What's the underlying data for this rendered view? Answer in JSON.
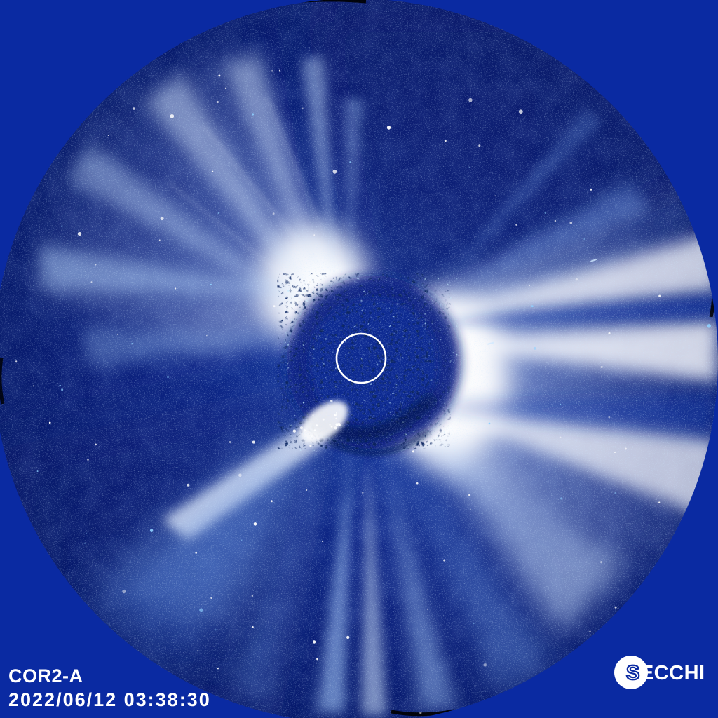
{
  "overlay": {
    "instrument_label": "COR2-A",
    "timestamp": "2022/06/12 03:38:30",
    "logo": {
      "first": "S",
      "rest": "ECCHI"
    }
  },
  "colors": {
    "corner_blue": "#0a2aa2",
    "field_dark": "#071a6b",
    "field_mid": "#143ba8",
    "glow_blue": "#2f63d8",
    "streamer_light": "#cfe2fc",
    "streamer_white": "#ffffff",
    "occulter_dark": "#0b2384",
    "speckle_black": "#041349",
    "speckle_bright": "#8fd0ff",
    "marker_stroke": "#ffffff",
    "label_text": "#ffffff",
    "logo_circle": "#ffffff"
  }
}
